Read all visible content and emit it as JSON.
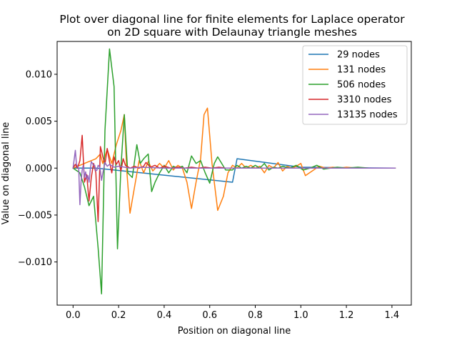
{
  "chart_data": {
    "type": "line",
    "title_lines": [
      "Plot over diagonal line for finite elements for Laplace operator",
      "on 2D square with Delaunay triangle meshes"
    ],
    "xlabel": "Position on diagonal line",
    "ylabel": "Value on diagonal line",
    "xlim": [
      -0.07,
      1.485
    ],
    "ylim": [
      -0.0146,
      0.0135
    ],
    "xticks": [
      0.0,
      0.2,
      0.4,
      0.6,
      0.8,
      1.0,
      1.2,
      1.4
    ],
    "xtick_labels": [
      "0.0",
      "0.2",
      "0.4",
      "0.6",
      "0.8",
      "1.0",
      "1.2",
      "1.4"
    ],
    "yticks": [
      -0.01,
      -0.005,
      0.0,
      0.005,
      0.01
    ],
    "ytick_labels": [
      "−0.010",
      "−0.005",
      "0.000",
      "0.005",
      "0.010"
    ],
    "grid": false,
    "legend_position": "top-right",
    "series": [
      {
        "name": "29 nodes",
        "color": "#1f77b4",
        "x": [
          0.0,
          0.1,
          0.7,
          0.72,
          1.0,
          1.414
        ],
        "y": [
          0.0,
          0.0,
          -0.0015,
          0.001,
          0.0001,
          0.0
        ]
      },
      {
        "name": "131 nodes",
        "color": "#ff7f0e",
        "x": [
          0.0,
          0.05,
          0.1,
          0.12,
          0.13,
          0.15,
          0.17,
          0.19,
          0.21,
          0.225,
          0.235,
          0.25,
          0.27,
          0.29,
          0.31,
          0.33,
          0.35,
          0.38,
          0.4,
          0.42,
          0.44,
          0.46,
          0.48,
          0.5,
          0.52,
          0.54,
          0.56,
          0.575,
          0.59,
          0.61,
          0.635,
          0.66,
          0.68,
          0.7,
          0.72,
          0.74,
          0.76,
          0.78,
          0.8,
          0.82,
          0.84,
          0.86,
          0.88,
          0.9,
          0.92,
          0.94,
          0.96,
          0.98,
          1.0,
          1.02,
          1.05,
          1.08,
          1.11,
          1.14,
          1.17,
          1.2,
          1.25,
          1.3,
          1.35,
          1.414
        ],
        "y": [
          0.0,
          0.0005,
          0.001,
          0.0015,
          0.0005,
          0.002,
          0.0005,
          0.0025,
          0.004,
          0.0057,
          0.0,
          -0.0048,
          -0.002,
          0.0008,
          -0.0005,
          0.0007,
          -0.0003,
          0.0005,
          0.0,
          0.0008,
          -0.0002,
          0.0003,
          0.0,
          -0.0015,
          -0.0043,
          -0.0015,
          0.001,
          0.0057,
          0.0064,
          0.0005,
          -0.0045,
          -0.003,
          -0.0005,
          0.0003,
          0.0,
          0.0005,
          0.0,
          0.0003,
          0.0,
          0.0002,
          -0.0005,
          0.0003,
          0.0,
          0.0006,
          -0.0003,
          0.0002,
          0.0,
          0.0002,
          0.0005,
          -0.0008,
          -0.0003,
          0.0002,
          0.0,
          0.0001,
          0.0,
          0.0001,
          0.0,
          0.0,
          0.0,
          0.0
        ]
      },
      {
        "name": "506 nodes",
        "color": "#2ca02c",
        "x": [
          0.0,
          0.03,
          0.05,
          0.07,
          0.09,
          0.11,
          0.125,
          0.14,
          0.16,
          0.18,
          0.195,
          0.21,
          0.225,
          0.24,
          0.26,
          0.28,
          0.295,
          0.31,
          0.33,
          0.345,
          0.36,
          0.38,
          0.4,
          0.42,
          0.44,
          0.46,
          0.48,
          0.5,
          0.52,
          0.54,
          0.56,
          0.58,
          0.6,
          0.62,
          0.635,
          0.65,
          0.67,
          0.7,
          0.72,
          0.74,
          0.76,
          0.78,
          0.8,
          0.82,
          0.84,
          0.86,
          0.88,
          0.9,
          0.92,
          0.95,
          0.98,
          1.01,
          1.04,
          1.07,
          1.1,
          1.13,
          1.16,
          1.2,
          1.25,
          1.3,
          1.35,
          1.414
        ],
        "y": [
          0.0,
          -0.0005,
          -0.002,
          -0.004,
          -0.003,
          -0.0085,
          -0.0134,
          0.004,
          0.0127,
          0.0087,
          -0.0086,
          0.0,
          0.0057,
          -0.0005,
          -0.001,
          0.0025,
          0.0005,
          0.001,
          0.0015,
          -0.0025,
          -0.0015,
          -0.0005,
          0.0003,
          -0.0005,
          0.0002,
          0.0,
          0.0002,
          -0.0005,
          0.0013,
          0.0005,
          0.0008,
          -0.0005,
          -0.0016,
          0.0005,
          0.0012,
          0.0006,
          -0.0002,
          -0.0002,
          0.0003,
          0.0,
          0.0002,
          0.0,
          0.0003,
          0.0,
          0.0005,
          -0.0002,
          0.0001,
          0.0,
          0.0002,
          0.0,
          0.0003,
          -0.0002,
          0.0,
          0.0003,
          -0.0001,
          0.0,
          0.0001,
          0.0,
          0.0001,
          0.0,
          0.0,
          0.0
        ]
      },
      {
        "name": "3310 nodes",
        "color": "#d62728",
        "x": [
          0.0,
          0.01,
          0.02,
          0.03,
          0.04,
          0.05,
          0.06,
          0.07,
          0.08,
          0.09,
          0.1,
          0.11,
          0.12,
          0.13,
          0.14,
          0.15,
          0.16,
          0.17,
          0.18,
          0.19,
          0.2,
          0.21,
          0.22,
          0.23,
          0.25,
          0.27,
          0.29,
          0.31,
          0.32,
          0.34,
          0.36,
          0.38,
          0.4,
          0.43,
          0.46,
          0.49,
          0.52,
          0.55,
          0.58,
          0.61,
          0.64,
          0.67,
          0.7,
          0.75,
          0.8,
          0.85,
          0.9,
          1.0,
          1.1,
          1.2,
          1.3,
          1.414
        ],
        "y": [
          0.0,
          0.0004,
          0.0,
          0.0008,
          0.0035,
          -0.0015,
          -0.0007,
          -0.0035,
          -0.001,
          0.0005,
          -0.0005,
          -0.0057,
          0.0023,
          0.0013,
          0.0004,
          0.0021,
          0.0007,
          -0.0005,
          0.0012,
          0.0004,
          0.0008,
          -0.0003,
          0.001,
          0.0003,
          0.0,
          0.0002,
          0.0,
          0.0002,
          0.0006,
          0.0001,
          0.0003,
          0.0,
          0.0002,
          0.0,
          0.0001,
          0.0,
          0.0001,
          0.0,
          0.0001,
          0.0,
          0.0001,
          0.0,
          0.0,
          0.0,
          0.0,
          0.0,
          0.0,
          0.0,
          0.0,
          0.0,
          0.0,
          0.0
        ]
      },
      {
        "name": "13135 nodes",
        "color": "#9467bd",
        "x": [
          0.0,
          0.01,
          0.015,
          0.02,
          0.025,
          0.03,
          0.035,
          0.04,
          0.045,
          0.05,
          0.055,
          0.06,
          0.065,
          0.07,
          0.075,
          0.08,
          0.085,
          0.09,
          0.095,
          0.1,
          0.105,
          0.11,
          0.115,
          0.12,
          0.125,
          0.13,
          0.14,
          0.15,
          0.16,
          0.18,
          0.2,
          0.25,
          0.3,
          0.4,
          0.5,
          0.6,
          0.7,
          0.8,
          0.9,
          1.0,
          1.1,
          1.2,
          1.3,
          1.414
        ],
        "y": [
          0.0,
          0.0019,
          0.0004,
          0.0002,
          -0.0001,
          -0.0039,
          -0.0015,
          -0.0002,
          0.0003,
          -0.001,
          -0.0004,
          -0.0012,
          -0.0008,
          -0.0015,
          -0.0003,
          0.0007,
          0.0005,
          0.0003,
          0.0003,
          -0.0003,
          -0.0002,
          0.0003,
          0.0002,
          -0.0003,
          -0.0013,
          -0.0006,
          0.0006,
          0.0002,
          0.0004,
          0.0001,
          0.0002,
          0.0,
          0.0001,
          0.0,
          0.0,
          0.0,
          0.0,
          0.0,
          0.0,
          0.0,
          0.0,
          0.0,
          0.0,
          0.0
        ]
      }
    ]
  }
}
